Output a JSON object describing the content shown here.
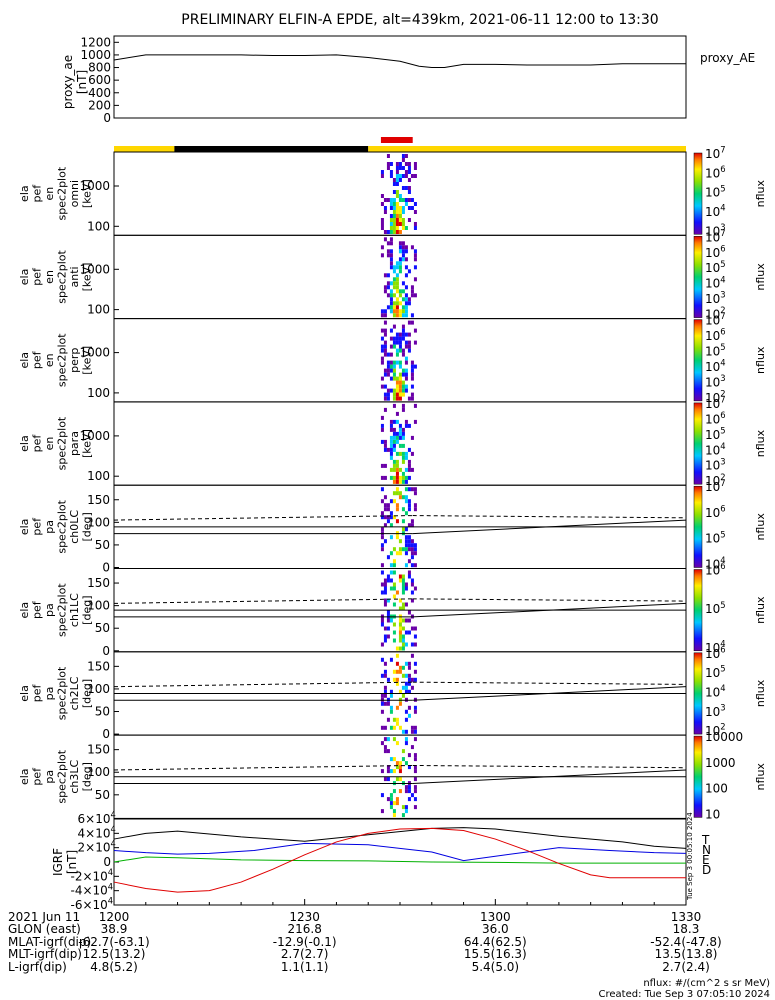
{
  "title": "PRELIMINARY ELFIN-A EPDE, alt=439km, 2021-06-11 12:00 to 13:30",
  "footer": {
    "units": "nflux: #/(cm^2 s sr MeV)",
    "created": "Created: Tue Sep  3 07:05:10 2024"
  },
  "side_stamp": "Tue Sep  3 00:05:10 2024",
  "bottom_rows": {
    "labels": [
      "2021 Jun 11",
      "GLON (east)",
      "MLAT-igrf(dip)",
      "MLT-igrf(dip)",
      "L-igrf(dip)"
    ],
    "columns": [
      {
        "time": "1200",
        "glon": "38.9",
        "mlat": "-62.7(-63.1)",
        "mlt": "12.5(13.2)",
        "l": "4.8(5.2)"
      },
      {
        "time": "1230",
        "glon": "216.8",
        "mlat": "-12.9(-0.1)",
        "mlt": "2.7(2.7)",
        "l": "1.1(1.1)"
      },
      {
        "time": "1300",
        "glon": "36.0",
        "mlat": "64.4(62.5)",
        "mlt": "15.5(16.3)",
        "l": "5.4(5.0)"
      },
      {
        "time": "1330",
        "glon": "18.3",
        "mlat": "-52.4(-47.8)",
        "mlt": "13.5(13.8)",
        "l": "2.7(2.4)"
      }
    ]
  },
  "chart_data": [
    {
      "type": "line",
      "ylabel": "proxy_ae [nT]",
      "legend": "proxy_AE",
      "yticks": [
        "0",
        "200",
        "400",
        "600",
        "800",
        "1000",
        "1200"
      ],
      "ylim": [
        0,
        1300
      ],
      "x_minutes": [
        0,
        5,
        10,
        15,
        20,
        25,
        30,
        35,
        40,
        45,
        48,
        50,
        52,
        55,
        60,
        65,
        70,
        75,
        80,
        85,
        90
      ],
      "values": [
        920,
        1000,
        1000,
        1000,
        1000,
        990,
        990,
        1000,
        960,
        900,
        820,
        800,
        800,
        850,
        850,
        840,
        840,
        840,
        860,
        860,
        860
      ]
    },
    {
      "type": "bar",
      "name": "orbit bar",
      "segments": [
        {
          "start_min": 0,
          "end_min": 9.5,
          "color": "#FFD700"
        },
        {
          "start_min": 9.5,
          "end_min": 40,
          "color": "#000000"
        },
        {
          "start_min": 40,
          "end_min": 90,
          "color": "#FFD700"
        }
      ],
      "marker": {
        "start_min": 42,
        "end_min": 47,
        "color": "#E00000"
      }
    },
    {
      "type": "heatmap",
      "panels": [
        {
          "ylabel": [
            "ela",
            "pef",
            "en",
            "spec2plot",
            "omni",
            "[keV]"
          ],
          "yticks": [
            "100",
            "1000"
          ],
          "cbar_ticks": [
            "10^3",
            "10^4",
            "10^5",
            "10^6",
            "10^7"
          ],
          "cbar_label": "nflux"
        },
        {
          "ylabel": [
            "ela",
            "pef",
            "en",
            "spec2plot",
            "anti",
            "[keV]"
          ],
          "yticks": [
            "100",
            "1000"
          ],
          "cbar_ticks": [
            "10^2",
            "10^3",
            "10^4",
            "10^5",
            "10^6",
            "10^7"
          ],
          "cbar_label": "nflux"
        },
        {
          "ylabel": [
            "ela",
            "pef",
            "en",
            "spec2plot",
            "perp",
            "[keV]"
          ],
          "yticks": [
            "100",
            "1000"
          ],
          "cbar_ticks": [
            "10^2",
            "10^3",
            "10^4",
            "10^5",
            "10^6",
            "10^7"
          ],
          "cbar_label": "nflux"
        },
        {
          "ylabel": [
            "ela",
            "pef",
            "en",
            "spec2plot",
            "para",
            "[keV]"
          ],
          "yticks": [
            "100",
            "1000"
          ],
          "cbar_ticks": [
            "10^2",
            "10^3",
            "10^4",
            "10^5",
            "10^6",
            "10^7"
          ],
          "cbar_label": "nflux"
        },
        {
          "ylabel": [
            "ela",
            "pef",
            "pa",
            "spec2plot",
            "ch0LC",
            "[deg]"
          ],
          "yticks": [
            "0",
            "50",
            "100",
            "150"
          ],
          "cbar_ticks": [
            "10^4",
            "10^5",
            "10^6",
            "10^7"
          ],
          "cbar_label": "nflux"
        },
        {
          "ylabel": [
            "ela",
            "pef",
            "pa",
            "spec2plot",
            "ch1LC",
            "[deg]"
          ],
          "yticks": [
            "0",
            "50",
            "100",
            "150"
          ],
          "cbar_ticks": [
            "10^4",
            "10^5",
            "10^6"
          ],
          "cbar_label": "nflux"
        },
        {
          "ylabel": [
            "ela",
            "pef",
            "pa",
            "spec2plot",
            "ch2LC",
            "[deg]"
          ],
          "yticks": [
            "0",
            "50",
            "100",
            "150"
          ],
          "cbar_ticks": [
            "10^2",
            "10^3",
            "10^4",
            "10^5",
            "10^6"
          ],
          "cbar_label": "nflux"
        },
        {
          "ylabel": [
            "ela",
            "pef",
            "pa",
            "spec2plot",
            "ch3LC",
            "[deg]"
          ],
          "yticks": [
            "50",
            "100",
            "150"
          ],
          "cbar_ticks": [
            "10",
            "100",
            "1000",
            "10000"
          ],
          "cbar_label": "nflux"
        }
      ]
    },
    {
      "type": "line",
      "ylabel": "IGRF [nT]",
      "yticks": [
        "-6×10^4",
        "-4×10^4",
        "-2×10^4",
        "0",
        "2×10^4",
        "4×10^4",
        "6×10^4"
      ],
      "ylim": [
        -60000,
        60000
      ],
      "legend": [
        "T",
        "N",
        "E",
        "D"
      ],
      "series": [
        {
          "name": "T",
          "color": "#000000",
          "x_minutes": [
            0,
            5,
            10,
            20,
            30,
            40,
            50,
            55,
            60,
            70,
            80,
            85,
            90
          ],
          "values": [
            32000,
            40000,
            43000,
            35000,
            29000,
            38000,
            47000,
            48000,
            46000,
            36000,
            28000,
            22000,
            19000
          ]
        },
        {
          "name": "N",
          "color": "#0000E0",
          "x_minutes": [
            0,
            5,
            10,
            15,
            22,
            30,
            40,
            50,
            55,
            60,
            65,
            70,
            78,
            85,
            90
          ],
          "values": [
            16000,
            13000,
            11000,
            12000,
            16000,
            26000,
            24000,
            14000,
            2000,
            8000,
            14000,
            20000,
            16000,
            13000,
            12000
          ]
        },
        {
          "name": "E",
          "color": "#00B000",
          "x_minutes": [
            0,
            5,
            10,
            20,
            30,
            40,
            50,
            60,
            70,
            80,
            90
          ],
          "values": [
            0,
            7000,
            6000,
            3000,
            2000,
            1500,
            0,
            -500,
            -1500,
            -1500,
            -1500
          ]
        },
        {
          "name": "D",
          "color": "#E00000",
          "x_minutes": [
            0,
            5,
            10,
            15,
            20,
            25,
            30,
            35,
            40,
            45,
            50,
            55,
            60,
            65,
            70,
            75,
            78,
            80,
            85,
            90
          ],
          "values": [
            -28000,
            -37000,
            -42000,
            -40000,
            -28000,
            -10000,
            10000,
            28000,
            40000,
            46000,
            47000,
            44000,
            32000,
            16000,
            -2000,
            -18000,
            -22000,
            -22000,
            -22000,
            -22000
          ]
        }
      ]
    }
  ]
}
